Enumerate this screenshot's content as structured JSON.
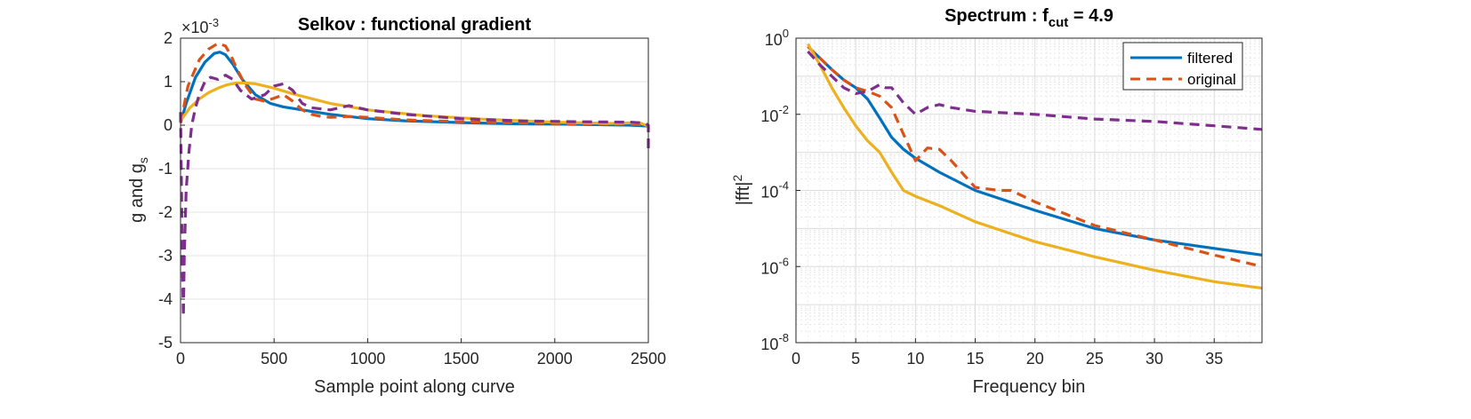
{
  "chart_data": [
    {
      "type": "line",
      "title": "Selkov : functional gradient",
      "xlabel": "Sample point along curve",
      "ylabel_main": "g and g",
      "ylabel_sub": "s",
      "y_exponent_prefix": "×10",
      "y_exponent": "-3",
      "xlim": [
        0,
        2500
      ],
      "ylim": [
        -5,
        2
      ],
      "xticks": [
        "0",
        "500",
        "1000",
        "1500",
        "2000",
        "2500"
      ],
      "yticks": [
        "2",
        "1",
        "0",
        "-1",
        "-2",
        "-3",
        "-4",
        "-5"
      ],
      "grid": true,
      "series": [
        {
          "color": "#0072BD",
          "style": "solid",
          "x": [
            0,
            30,
            80,
            130,
            180,
            210,
            240,
            280,
            330,
            400,
            480,
            550,
            650,
            800,
            1000,
            1200,
            1500,
            1800,
            2100,
            2400,
            2500
          ],
          "y": [
            0.05,
            0.5,
            1.1,
            1.45,
            1.65,
            1.68,
            1.62,
            1.4,
            1.05,
            0.7,
            0.5,
            0.42,
            0.35,
            0.25,
            0.15,
            0.1,
            0.06,
            0.03,
            0.02,
            0.0,
            -0.02
          ]
        },
        {
          "color": "#D95319",
          "style": "dashed",
          "x": [
            0,
            40,
            100,
            150,
            200,
            240,
            270,
            300,
            350,
            400,
            450,
            500,
            550,
            600,
            650,
            700,
            750,
            800,
            900,
            1000,
            1200,
            1500,
            1800,
            2100,
            2400,
            2500
          ],
          "y": [
            0.05,
            0.9,
            1.5,
            1.75,
            1.88,
            1.82,
            1.6,
            1.3,
            0.9,
            0.6,
            0.55,
            0.62,
            0.7,
            0.55,
            0.35,
            0.25,
            0.2,
            0.18,
            0.2,
            0.18,
            0.12,
            0.08,
            0.05,
            0.03,
            0.02,
            0.0
          ]
        },
        {
          "color": "#EDB120",
          "style": "solid",
          "x": [
            0,
            50,
            100,
            150,
            200,
            250,
            300,
            350,
            400,
            500,
            600,
            800,
            1000,
            1300,
            1600,
            2000,
            2300,
            2450,
            2500
          ],
          "y": [
            0.1,
            0.4,
            0.6,
            0.75,
            0.85,
            0.93,
            0.97,
            0.97,
            0.95,
            0.85,
            0.72,
            0.5,
            0.35,
            0.22,
            0.14,
            0.07,
            0.04,
            0.06,
            -0.02
          ]
        },
        {
          "color": "#7E2F8E",
          "style": "dashed",
          "x": [
            0,
            5,
            10,
            15,
            20,
            30,
            45,
            60,
            80,
            100,
            130,
            160,
            200,
            240,
            280,
            320,
            380,
            450,
            500,
            550,
            600,
            650,
            700,
            800,
            900,
            1000,
            1200,
            1500,
            1800,
            2100,
            2400,
            2480,
            2500,
            2500
          ],
          "y": [
            0.3,
            -1.5,
            -3.3,
            -4.4,
            -3.0,
            -1.5,
            -0.6,
            0.0,
            0.4,
            0.7,
            1.0,
            1.1,
            1.05,
            1.15,
            1.05,
            0.8,
            0.6,
            0.7,
            0.9,
            0.95,
            0.8,
            0.5,
            0.4,
            0.35,
            0.45,
            0.35,
            0.25,
            0.15,
            0.1,
            0.08,
            0.07,
            0.05,
            0.0,
            -0.55
          ]
        }
      ]
    },
    {
      "type": "line",
      "title_main": "Spectrum : f",
      "title_sub": "cut",
      "title_tail": " = 4.9",
      "xlabel": "Frequency bin",
      "ylabel_main": "|fft|",
      "ylabel_sup": "2",
      "xlim": [
        0,
        39
      ],
      "ylim": [
        1e-08,
        1
      ],
      "yscale": "log",
      "xticks": [
        "0",
        "5",
        "10",
        "15",
        "20",
        "25",
        "30",
        "35"
      ],
      "ytick_base": "10",
      "ytick_exps": [
        "0",
        "-2",
        "-4",
        "-6",
        "-8"
      ],
      "grid": true,
      "minor_grid": true,
      "legend_position": "top-right",
      "legend": [
        "filtered",
        "original"
      ],
      "series": [
        {
          "name": "filtered",
          "color": "#0072BD",
          "style": "solid",
          "x": [
            1,
            2,
            3,
            4,
            5,
            6,
            7,
            8,
            9,
            10,
            12,
            15,
            20,
            25,
            30,
            35,
            39
          ],
          "y": [
            0.6,
            0.3,
            0.15,
            0.08,
            0.05,
            0.025,
            0.008,
            0.0025,
            0.0012,
            0.0007,
            0.0003,
            0.0001,
            3e-05,
            1e-05,
            5e-06,
            3e-06,
            2e-06
          ]
        },
        {
          "name": "original",
          "color": "#D95319",
          "style": "dashed",
          "x": [
            1,
            2,
            3,
            4,
            5,
            6,
            7,
            8,
            9,
            10,
            11,
            12,
            13,
            15,
            17,
            18,
            20,
            25,
            30,
            35,
            39
          ],
          "y": [
            0.6,
            0.3,
            0.15,
            0.08,
            0.05,
            0.04,
            0.03,
            0.015,
            0.003,
            0.0006,
            0.0013,
            0.0012,
            0.0006,
            0.00012,
            0.0001,
            0.0001,
            5e-05,
            1.2e-05,
            5e-06,
            2e-06,
            1e-06
          ]
        },
        {
          "color": "#EDB120",
          "style": "solid",
          "x": [
            1,
            2,
            3,
            4,
            5,
            6,
            7,
            8,
            9,
            10,
            12,
            15,
            20,
            25,
            30,
            35,
            39
          ],
          "y": [
            0.7,
            0.2,
            0.05,
            0.015,
            0.005,
            0.002,
            0.001,
            0.0003,
            0.0001,
            7e-05,
            4e-05,
            1.5e-05,
            4.5e-06,
            1.8e-06,
            8e-07,
            4e-07,
            2.7e-07
          ]
        },
        {
          "color": "#7E2F8E",
          "style": "dashed",
          "x": [
            1,
            2,
            3,
            4,
            5,
            6,
            7,
            7.5,
            8,
            9,
            10,
            11,
            12,
            13,
            15,
            20,
            25,
            30,
            35,
            39
          ],
          "y": [
            0.45,
            0.2,
            0.1,
            0.05,
            0.035,
            0.04,
            0.06,
            0.05,
            0.05,
            0.02,
            0.01,
            0.015,
            0.018,
            0.015,
            0.012,
            0.01,
            0.0075,
            0.0065,
            0.005,
            0.004
          ]
        }
      ]
    }
  ]
}
